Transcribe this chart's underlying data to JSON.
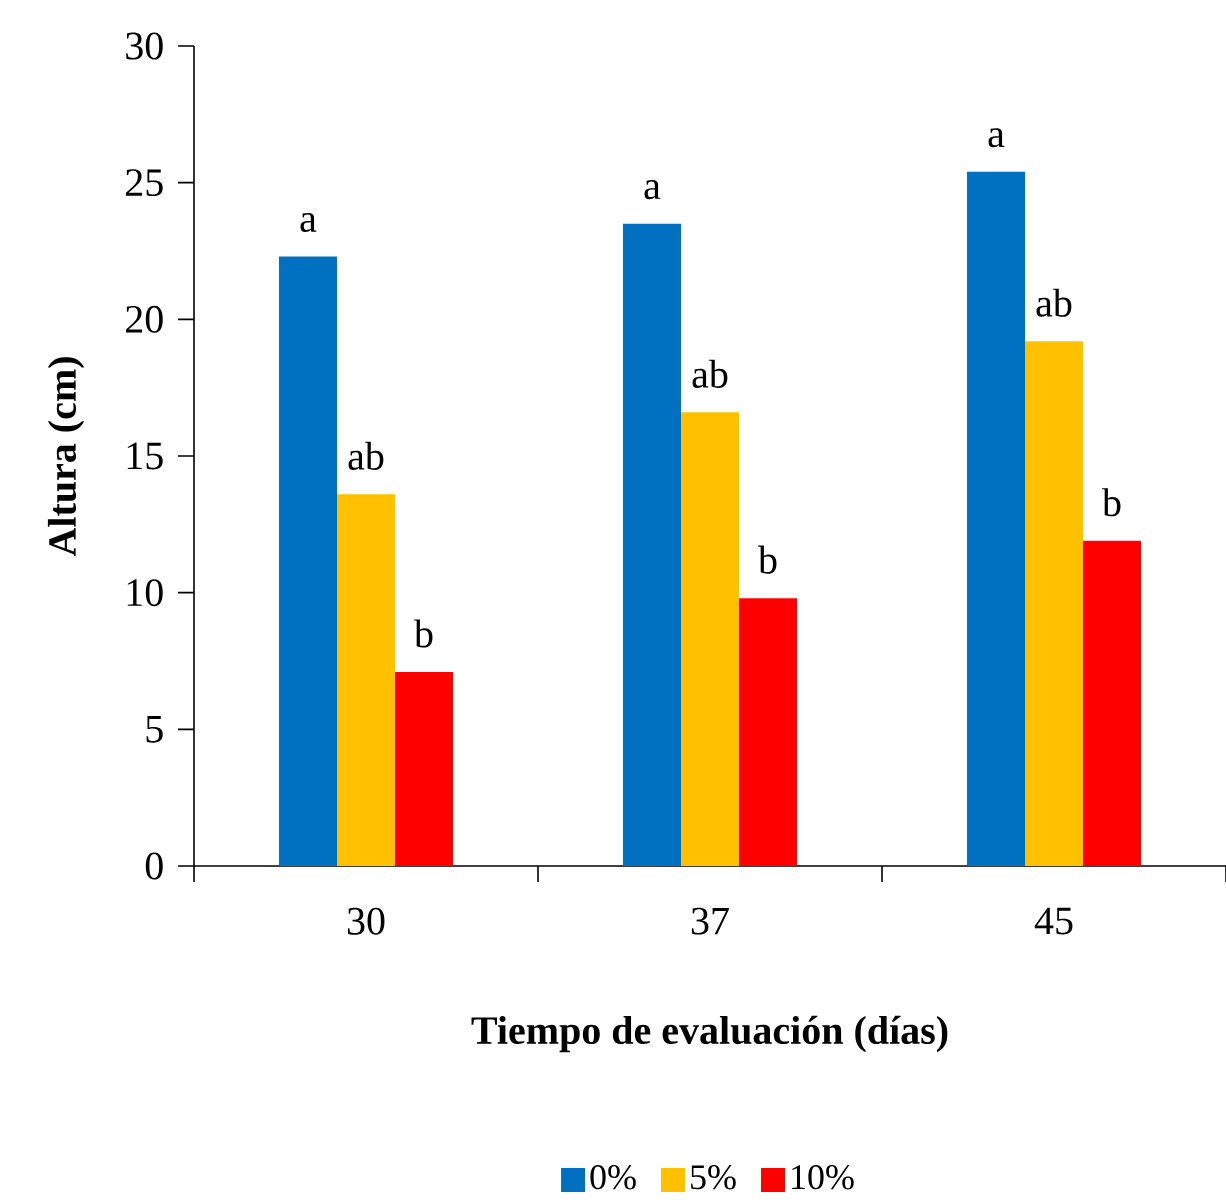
{
  "chart_data": {
    "type": "bar",
    "xlabel": "Tiempo de evaluación (días)",
    "ylabel": "Altura (cm)",
    "categories": [
      "30",
      "37",
      "45"
    ],
    "series": [
      {
        "name": "0%",
        "color": "#0070c0",
        "values": [
          22.3,
          23.5,
          25.4
        ],
        "value_labels": [
          "a",
          "a",
          "a"
        ]
      },
      {
        "name": "5%",
        "color": "#ffc000",
        "values": [
          13.6,
          16.6,
          19.2
        ],
        "value_labels": [
          "ab",
          "ab",
          "ab"
        ]
      },
      {
        "name": "10%",
        "color": "#ff0000",
        "values": [
          7.1,
          9.8,
          11.9
        ],
        "value_labels": [
          "b",
          "b",
          "b"
        ]
      }
    ],
    "ylim": [
      0,
      30
    ],
    "yticks": [
      0,
      5,
      10,
      15,
      20,
      25,
      30
    ],
    "grid": false,
    "legend": "bottom"
  }
}
